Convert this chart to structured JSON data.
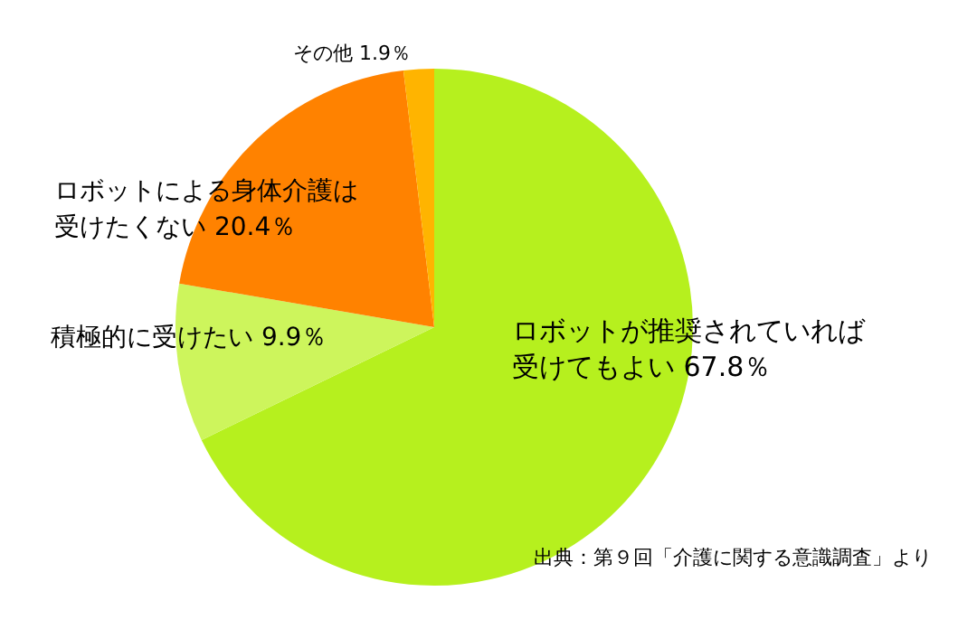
{
  "chart_data": {
    "type": "pie",
    "categories": [
      "ロボットが推奨されていれば受けてもよい",
      "積極的に受けたい",
      "ロボットによる身体介護は受けたくない",
      "その他"
    ],
    "values": [
      67.8,
      9.9,
      20.4,
      1.9
    ],
    "value_labels": [
      "67.8％",
      "9.9％",
      "20.4％",
      "1.9％"
    ],
    "colors": [
      "#b6f01e",
      "#cdf55c",
      "#ff8200",
      "#ffb400"
    ],
    "legend": false,
    "annotations": [
      "出典：第９回「介護に関する意識調査」より"
    ]
  }
}
